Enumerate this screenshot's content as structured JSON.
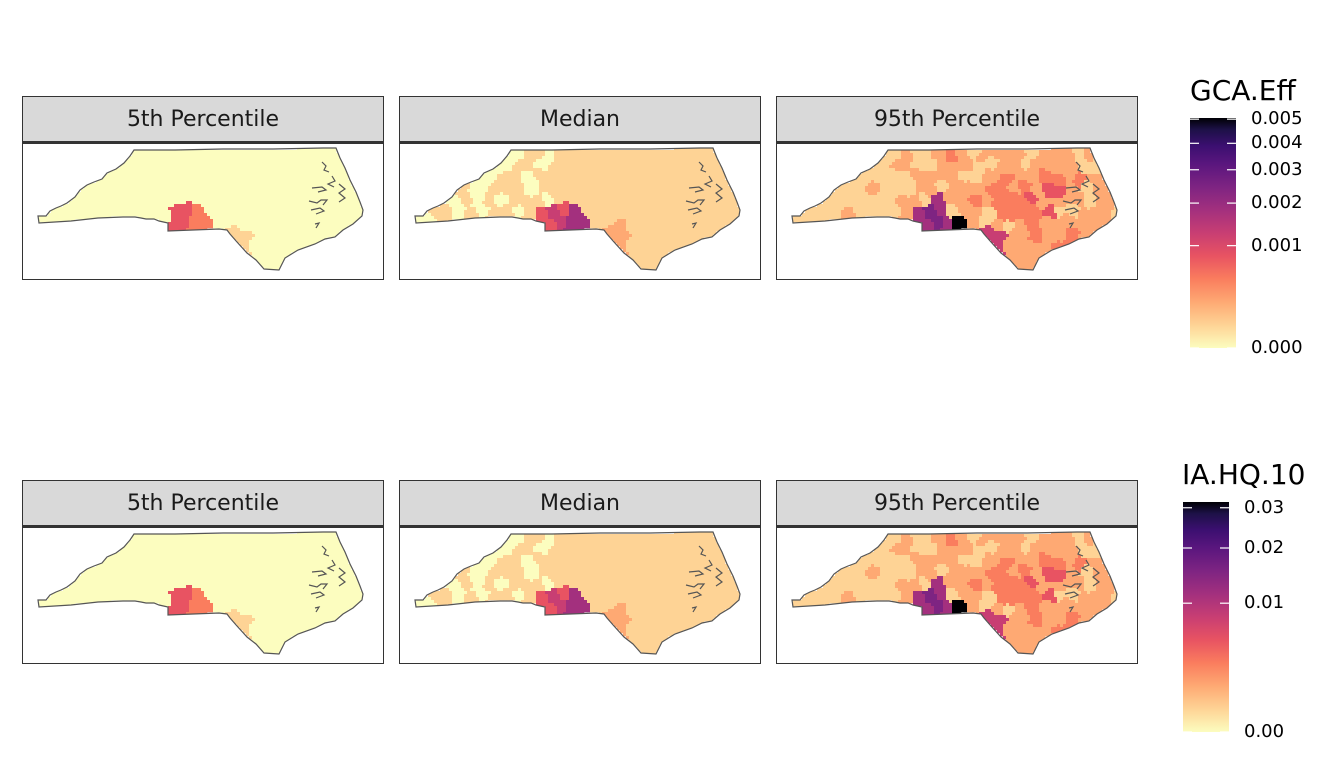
{
  "rows": [
    {
      "panels": [
        {
          "label": "5th Percentile",
          "level": 0
        },
        {
          "label": "Median",
          "level": 1
        },
        {
          "label": "95th Percentile",
          "level": 2
        }
      ],
      "legend": {
        "title": "GCA.Eff",
        "ticks": [
          {
            "label": "0.005",
            "frac": 0.995
          },
          {
            "label": "0.004",
            "frac": 0.89
          },
          {
            "label": "0.003",
            "frac": 0.775
          },
          {
            "label": "0.002",
            "frac": 0.63
          },
          {
            "label": "0.001",
            "frac": 0.445
          },
          {
            "label": "0.000",
            "frac": 0.0
          }
        ]
      }
    },
    {
      "panels": [
        {
          "label": "5th Percentile",
          "level": 0
        },
        {
          "label": "Median",
          "level": 1
        },
        {
          "label": "95th Percentile",
          "level": 2
        }
      ],
      "legend": {
        "title": "IA.HQ.10",
        "ticks": [
          {
            "label": "0.03",
            "frac": 0.975
          },
          {
            "label": "0.02",
            "frac": 0.8
          },
          {
            "label": "0.01",
            "frac": 0.56
          },
          {
            "label": "0.00",
            "frac": 0.0
          }
        ]
      }
    }
  ],
  "colors": {
    "palette": [
      "#fcfdbf",
      "#fed395",
      "#fea973",
      "#fa7d5e",
      "#e85362",
      "#c83e73",
      "#a3307e",
      "#7e2482",
      "#5a167e",
      "#3b0f70",
      "#1d1147",
      "#000004"
    ],
    "border": "#555555",
    "strip": "#d9d9d9"
  }
}
